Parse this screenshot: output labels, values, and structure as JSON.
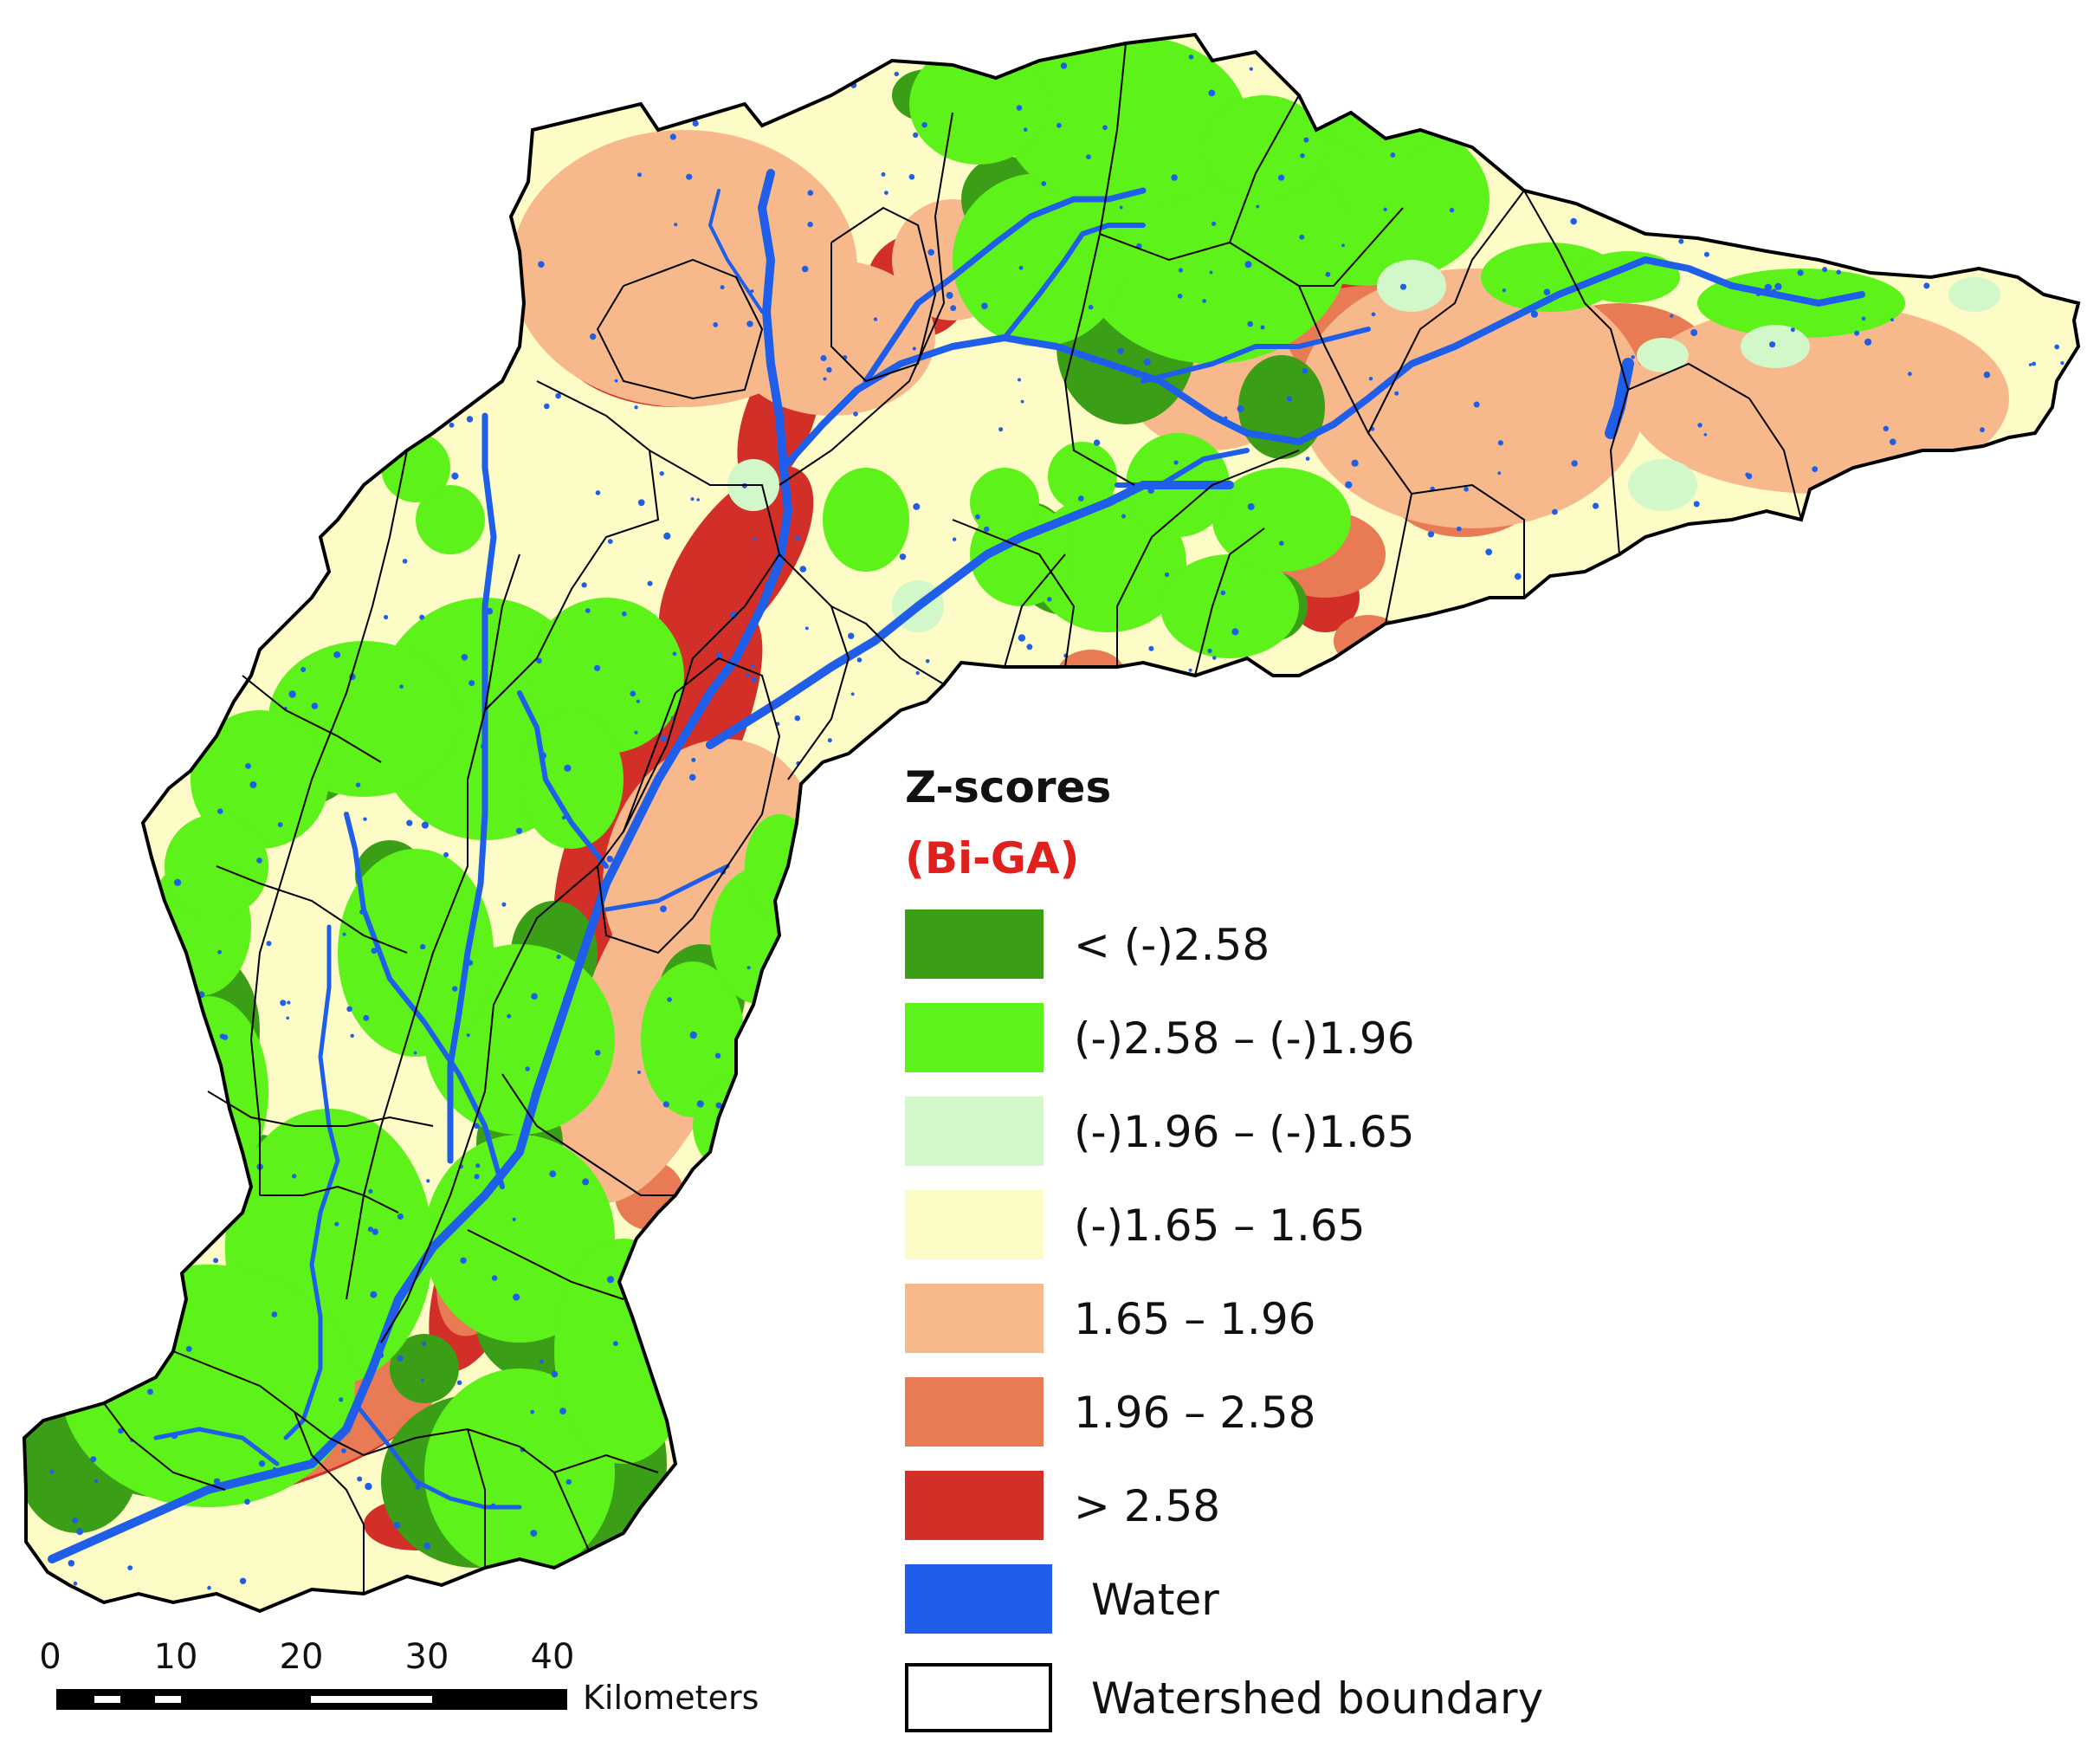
{
  "legend": {
    "title": "Z-scores",
    "subtitle": "(Bi-GA)",
    "items": [
      {
        "label": "< (-)2.58",
        "color": "#3a9e16"
      },
      {
        "label": "(-)2.58 – (-)1.96",
        "color": "#5cf21a"
      },
      {
        "label": "(-)1.96 – (-)1.65",
        "color": "#d2f7c9"
      },
      {
        "label": "(-)1.65 – 1.65",
        "color": "#fdfbc6"
      },
      {
        "label": "1.65 – 1.96",
        "color": "#f7b98c"
      },
      {
        "label": "1.96 – 2.58",
        "color": "#e87b54"
      },
      {
        "label": "> 2.58",
        "color": "#d12f28"
      },
      {
        "label": "Water",
        "color": "#1f5ee8"
      },
      {
        "label": "Watershed boundary",
        "color": "#ffffff"
      }
    ]
  },
  "scale_bar": {
    "ticks": [
      "0",
      "10",
      "20",
      "30",
      "40"
    ],
    "unit": "Kilometers"
  },
  "colors": {
    "base": "#fdfbc6",
    "boundary": "#000000",
    "water": "#1f5ee8"
  }
}
